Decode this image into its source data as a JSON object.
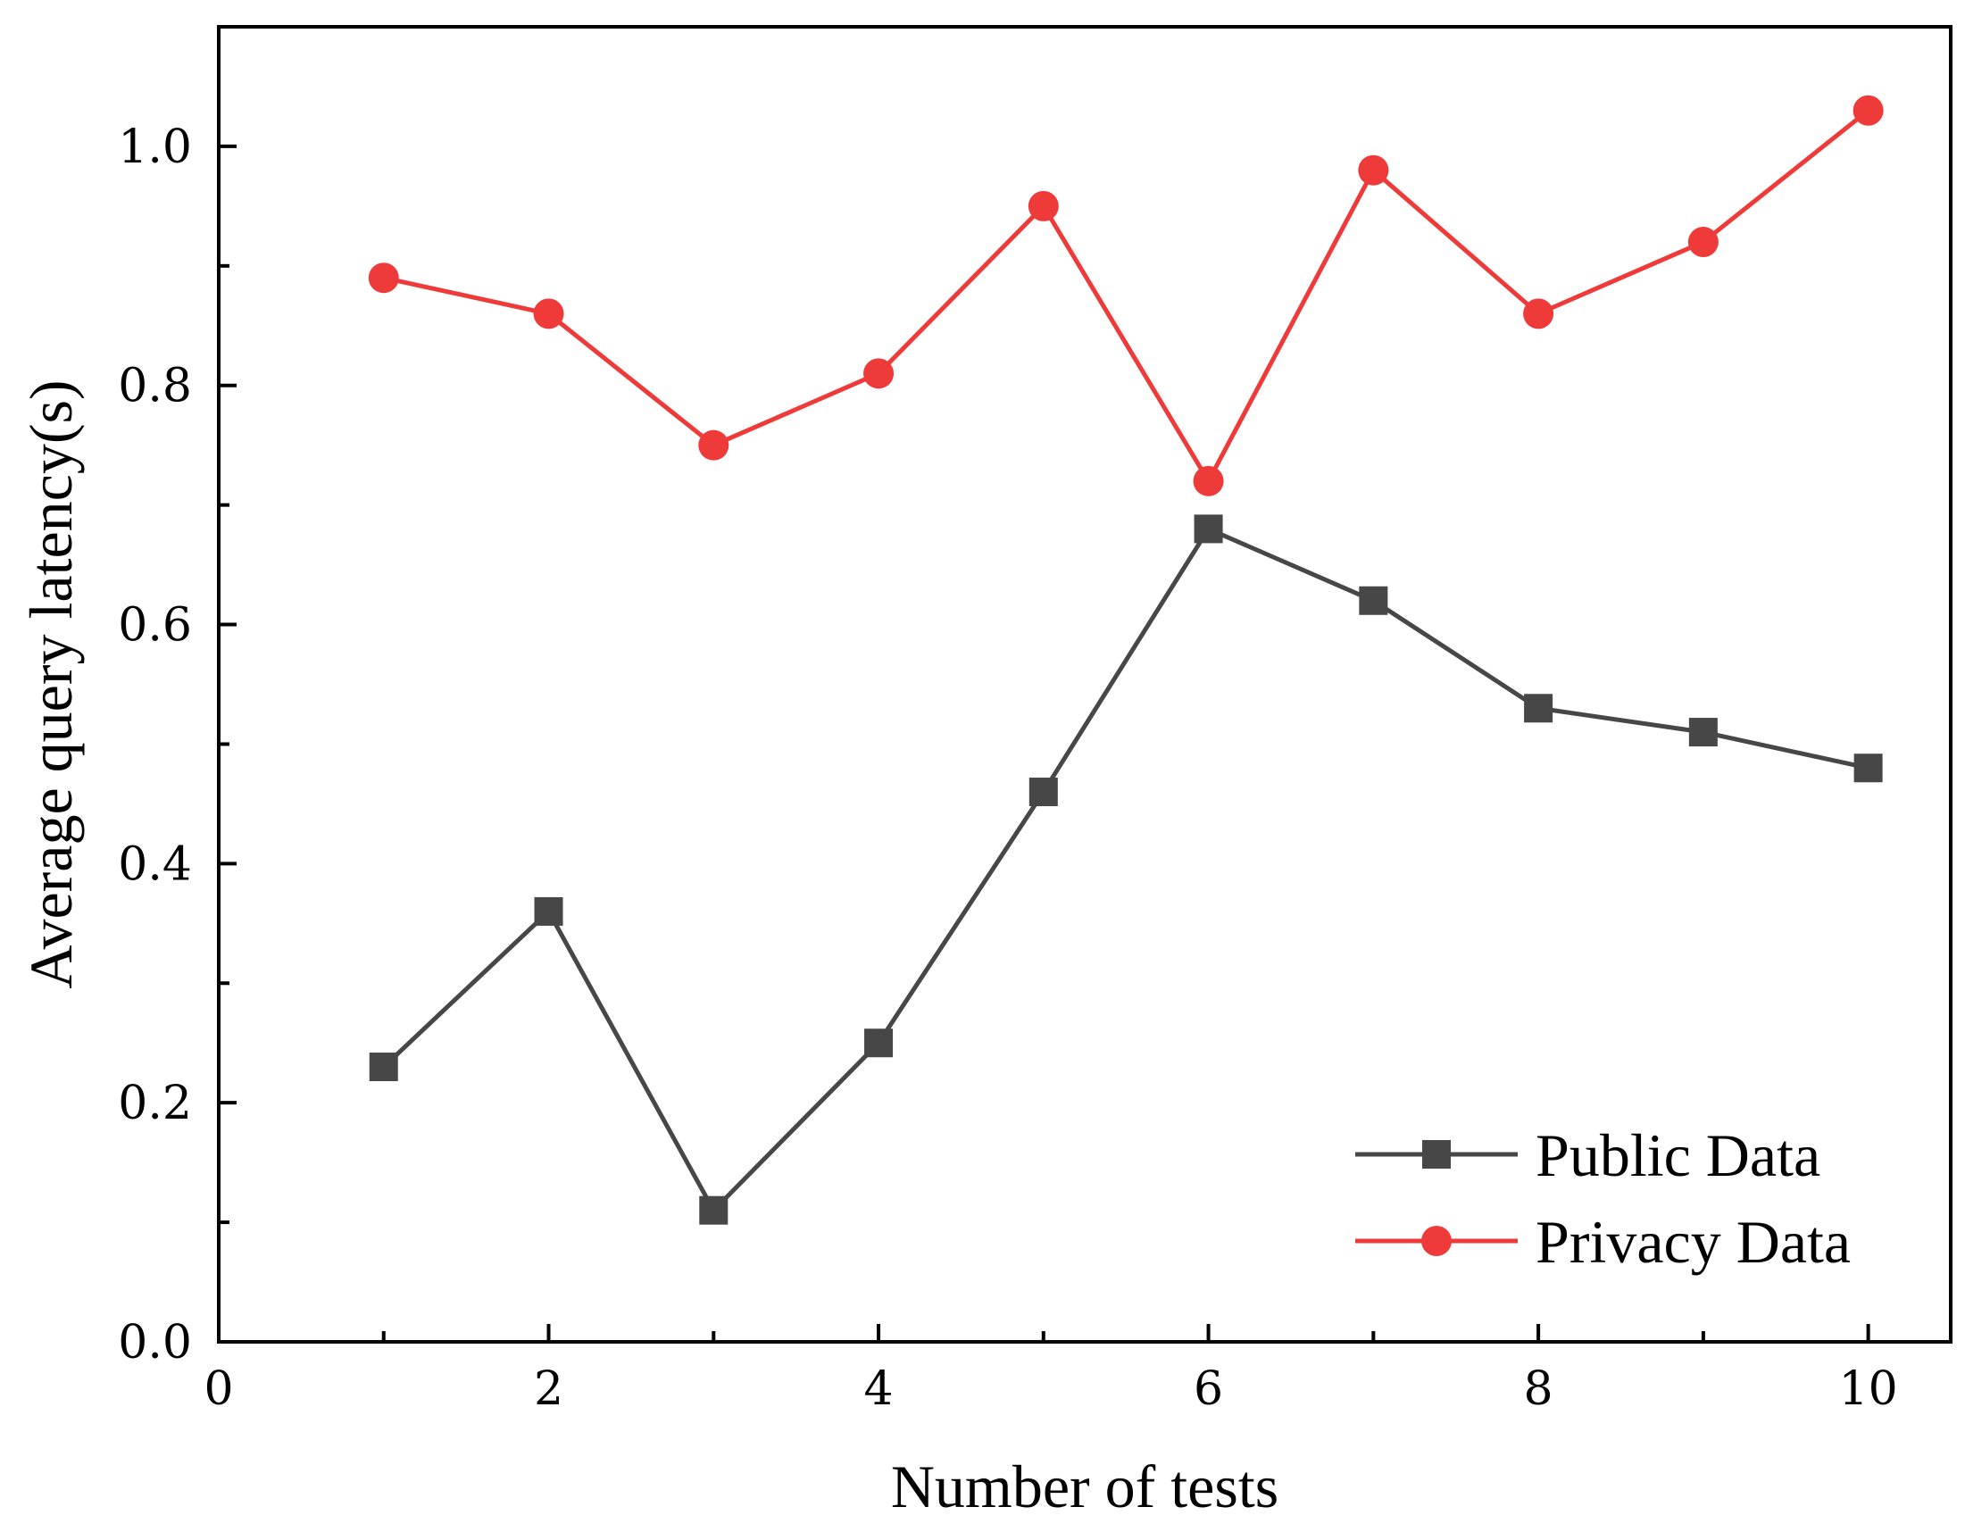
{
  "chart_data": {
    "type": "line",
    "xlabel": "Number of tests",
    "ylabel": "Average  query latency(s)",
    "xlim": [
      0,
      10.5
    ],
    "ylim": [
      0,
      1.1
    ],
    "xticks": [
      0,
      2,
      4,
      6,
      8,
      10
    ],
    "xtick_labels": [
      "0",
      "2",
      "4",
      "6",
      "8",
      "10"
    ],
    "yticks": [
      0.0,
      0.2,
      0.4,
      0.6,
      0.8,
      1.0
    ],
    "ytick_labels": [
      "0.0",
      "0.2",
      "0.4",
      "0.6",
      "0.8",
      "1.0"
    ],
    "x_minor_ticks": [
      1,
      3,
      5,
      7,
      9
    ],
    "y_minor_ticks": [
      0.1,
      0.3,
      0.5,
      0.7,
      0.9
    ],
    "grid": false,
    "legend_position": "bottom-right",
    "x": [
      1,
      2,
      3,
      4,
      5,
      6,
      7,
      8,
      9,
      10
    ],
    "series": [
      {
        "name": "Public Data",
        "color": "#474747",
        "marker": "square",
        "values": [
          0.23,
          0.36,
          0.11,
          0.25,
          0.46,
          0.68,
          0.62,
          0.53,
          0.51,
          0.48
        ]
      },
      {
        "name": "Privacy Data",
        "color": "#ef3a3a",
        "marker": "circle",
        "values": [
          0.89,
          0.86,
          0.75,
          0.81,
          0.95,
          0.72,
          0.98,
          0.86,
          0.92,
          1.03
        ]
      }
    ]
  }
}
